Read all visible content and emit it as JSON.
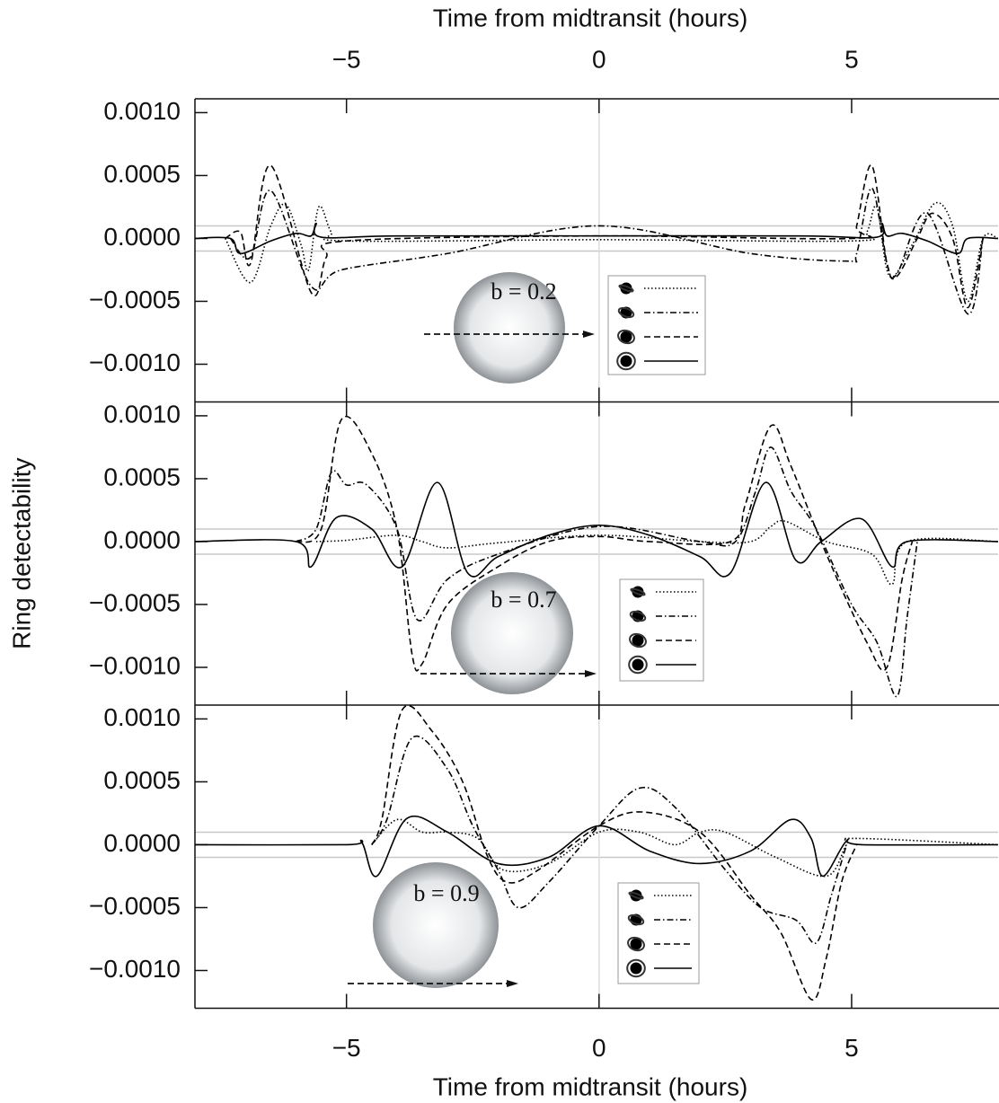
{
  "chart_data": [
    {
      "type": "line",
      "x_label": "Time from midtransit (hours)",
      "annotation": "b = 0.2",
      "xlim": [
        -8,
        7.9
      ],
      "ylim": [
        -0.0013,
        0.00111
      ],
      "xticks": [
        {
          "value": -5,
          "label": "−5"
        },
        0,
        5
      ],
      "yticks": [
        {
          "value": -0.001,
          "label": "−0.0010"
        },
        {
          "value": -0.0005,
          "label": "−0.0005"
        },
        {
          "value": 0,
          "label": "0.0000"
        },
        {
          "value": 0.0005,
          "label": "0.0005"
        },
        {
          "value": 0.001,
          "label": "0.0010"
        }
      ],
      "hlines": [
        0.0001,
        -0.0001
      ],
      "vlines": [
        0
      ],
      "series": [
        {
          "dash": "dotted",
          "color": "#000",
          "x": [
            -7.4,
            -6.9,
            -6.5,
            -6.2,
            -5.9,
            -5.75,
            -5.55,
            -5.3,
            -5,
            0,
            5,
            5.3,
            5.5,
            5.75,
            6.2,
            6.65,
            7,
            7.3,
            7.6,
            7.9
          ],
          "values": [
            0,
            -0.00035,
            0.0001,
            0.00027,
            -5e-05,
            -0.00025,
            0.00025,
            5e-05,
            -2e-05,
            -1e-05,
            -2e-05,
            5e-05,
            0.00025,
            -0.0003,
            -5e-05,
            0.00028,
            0.0001,
            -0.0005,
            0,
            0
          ]
        },
        {
          "dash": "dashdot",
          "color": "#000",
          "x": [
            -7.3,
            -6.9,
            -6.5,
            -5.7,
            -5.1,
            -3,
            0,
            3,
            4.9,
            5.1,
            5.4,
            5.7,
            5.9,
            6.5,
            7.3,
            7.6
          ],
          "values": [
            0,
            -0.00015,
            0.00038,
            -0.00038,
            -0.00025,
            -0.00012,
            0.0001,
            -0.00012,
            -0.00018,
            -0.00012,
            0.0004,
            -0.0002,
            -0.00028,
            0.0002,
            -0.0006,
            0
          ]
        },
        {
          "dash": "dashed",
          "color": "#000",
          "x": [
            -7.4,
            -7.1,
            -6.9,
            -6.5,
            -5.7,
            -5.4,
            -5,
            0,
            5,
            5.1,
            5.4,
            5.7,
            5.9,
            6.3,
            6.6,
            7,
            7.3,
            7.6
          ],
          "values": [
            0,
            5e-05,
            -0.0002,
            0.00058,
            -0.00043,
            -0.00015,
            -2e-05,
            2e-05,
            0,
            0.0001,
            0.00058,
            -0.0002,
            -0.0003,
            0,
            0.0002,
            0,
            -0.00055,
            0
          ]
        },
        {
          "dash": "solid",
          "color": "#000",
          "x": [
            -8,
            -7.3,
            -7.1,
            -6.5,
            -6,
            -5.7,
            -5.6,
            -5.5,
            -4,
            0,
            4,
            5.5,
            5.6,
            5.7,
            6,
            6.5,
            7.1,
            7.3,
            7.9
          ],
          "values": [
            0,
            0,
            -0.00012,
            -2e-05,
            4e-05,
            2e-05,
            0.00012,
            1e-05,
            2e-05,
            2e-05,
            2e-05,
            1e-05,
            0.00012,
            2e-05,
            4e-05,
            -2e-05,
            -0.00012,
            0,
            0
          ]
        }
      ]
    },
    {
      "type": "line",
      "y_label": "Ring detectability",
      "annotation": "b = 0.7",
      "xlim": [
        -8,
        7.9
      ],
      "ylim": [
        -0.0013,
        0.00111
      ],
      "xticks": [
        -5,
        0,
        5
      ],
      "yticks": [
        {
          "value": -0.001,
          "label": "−0.0010"
        },
        {
          "value": -0.0005,
          "label": "−0.0005"
        },
        {
          "value": 0,
          "label": "0.0000"
        },
        {
          "value": 0.0005,
          "label": "0.0005"
        },
        {
          "value": 0.001,
          "label": "0.0010"
        }
      ],
      "hlines": [
        0.0001,
        -0.0001
      ],
      "vlines": [
        0
      ],
      "series": [
        {
          "dash": "dotted",
          "color": "#000",
          "x": [
            -5.6,
            -5,
            -4,
            -3.5,
            -3,
            -2,
            0,
            2,
            3,
            3.4,
            3.7,
            4.5,
            5.4,
            5.8,
            6.1,
            7.9
          ],
          "values": [
            0,
            1e-05,
            5e-05,
            0,
            -5e-05,
            -1e-05,
            5e-05,
            0,
            0,
            0.00012,
            0.00016,
            0,
            -0.0001,
            -0.00034,
            0,
            0
          ]
        },
        {
          "dash": "dashdot",
          "color": "#000",
          "x": [
            -6,
            -5.6,
            -5.3,
            -5,
            -4.6,
            -4,
            -3.6,
            -3,
            -2,
            0,
            2,
            2.7,
            3.1,
            3.4,
            3.8,
            4.3,
            5,
            5.5,
            5.9,
            6.1,
            6.3
          ],
          "values": [
            0,
            0.0001,
            0.00055,
            0.00045,
            0.00045,
            0.0001,
            -0.00062,
            -0.0003,
            -0.0001,
            0.00012,
            0,
            0,
            0.0004,
            0.00075,
            0.0004,
            0.0001,
            -0.0005,
            -0.0008,
            -0.00123,
            -0.0006,
            0
          ]
        },
        {
          "dash": "dashed",
          "color": "#000",
          "x": [
            -6,
            -5.5,
            -5.1,
            -4.5,
            -4,
            -3.7,
            -3.5,
            -3,
            -2,
            -1,
            0,
            1,
            2.6,
            2.9,
            3.4,
            3.8,
            4.5,
            5.3,
            5.7,
            6,
            6.2
          ],
          "values": [
            0,
            0.0001,
            0.00097,
            0.0007,
            0.0001,
            -0.0009,
            -0.00097,
            -0.0005,
            -0.0002,
            0,
            4e-05,
            0,
            0,
            0.0003,
            0.00092,
            0.0006,
            -0.0001,
            -0.0008,
            -0.001,
            -0.0003,
            0
          ]
        },
        {
          "dash": "solid",
          "color": "#000",
          "x": [
            -8,
            -6,
            -5.7,
            -5.2,
            -4.5,
            -3.9,
            -3.2,
            -2.6,
            -2,
            -1,
            0,
            1,
            2,
            2.6,
            3.3,
            3.9,
            4.4,
            5.2,
            5.8,
            6.1,
            7.9
          ],
          "values": [
            0,
            0,
            -0.0002,
            0.00019,
            0.0001,
            -0.0002,
            0.00047,
            -0.00025,
            -0.00012,
            5e-05,
            0.00013,
            5e-05,
            -0.00012,
            -0.00025,
            0.00047,
            -0.00015,
            0,
            0.00018,
            -0.0002,
            0,
            0
          ]
        }
      ]
    },
    {
      "type": "line",
      "x_label": "Time from midtransit (hours)",
      "annotation": "b = 0.9",
      "xlim": [
        -8,
        7.9
      ],
      "ylim": [
        -0.0013,
        0.00111
      ],
      "xticks": [
        {
          "value": -5,
          "label": "−5"
        },
        0,
        5
      ],
      "yticks": [
        {
          "value": -0.001,
          "label": "−0.0010"
        },
        {
          "value": -0.0005,
          "label": "−0.0005"
        },
        {
          "value": 0,
          "label": "0.0000"
        },
        {
          "value": 0.0005,
          "label": "0.0005"
        },
        {
          "value": 0.001,
          "label": "0.0010"
        }
      ],
      "hlines": [
        0.0001,
        -0.0001
      ],
      "vlines": [
        0
      ],
      "series": [
        {
          "dash": "dotted",
          "color": "#000",
          "x": [
            -4.5,
            -4,
            -3.5,
            -3,
            -2.4,
            -1.9,
            -1,
            0,
            0.8,
            1.5,
            2,
            2.5,
            3.5,
            4.5,
            4.9,
            5.1,
            7.9
          ],
          "values": [
            0,
            0.0002,
            0.0001,
            0.0001,
            5e-05,
            -0.0002,
            -0.00015,
            0.0001,
            0.0001,
            0,
            0.0001,
            0.0001,
            -0.0001,
            -0.00025,
            0,
            5e-05,
            0
          ]
        },
        {
          "dash": "dashdot",
          "color": "#000",
          "x": [
            -4.5,
            -4.2,
            -3.7,
            -3,
            -2.5,
            -2,
            -1.6,
            -1,
            0,
            0.8,
            1.5,
            2.5,
            3.2,
            3.9,
            4.3,
            4.6,
            4.9
          ],
          "values": [
            0,
            0.0002,
            0.00085,
            0.0006,
            0.00015,
            -0.0002,
            -0.0005,
            -0.0003,
            0.00015,
            0.00045,
            0.0003,
            -0.0002,
            -0.0005,
            -0.0006,
            -0.00078,
            -0.0004,
            0
          ]
        },
        {
          "dash": "dashed",
          "color": "#000",
          "x": [
            -4.5,
            -4.3,
            -3.9,
            -3.3,
            -2.7,
            -2.2,
            -1.8,
            -1.2,
            0,
            0.87,
            2,
            3,
            3.6,
            4.2,
            4.5,
            4.8,
            5.1
          ],
          "values": [
            0,
            0.0002,
            0.00107,
            0.0009,
            0.0005,
            -0.0001,
            -0.0003,
            -0.0002,
            0.00015,
            0.00026,
            0.0001,
            -0.0004,
            -0.0007,
            -0.00123,
            -0.0009,
            -0.0003,
            0
          ]
        },
        {
          "dash": "solid",
          "color": "#000",
          "x": [
            -8,
            -5,
            -4.7,
            -4.4,
            -3.8,
            -3,
            -2,
            -1,
            0,
            1,
            2,
            3,
            3.8,
            4.2,
            4.43,
            4.9,
            5.2,
            7.9
          ],
          "values": [
            0,
            0,
            2e-05,
            -0.00025,
            0.00021,
            0.0001,
            -0.00015,
            -0.0001,
            0.00015,
            -5e-05,
            -0.00015,
            -5e-05,
            0.0002,
            5e-05,
            -0.00025,
            3e-05,
            0,
            0
          ]
        }
      ]
    }
  ]
}
